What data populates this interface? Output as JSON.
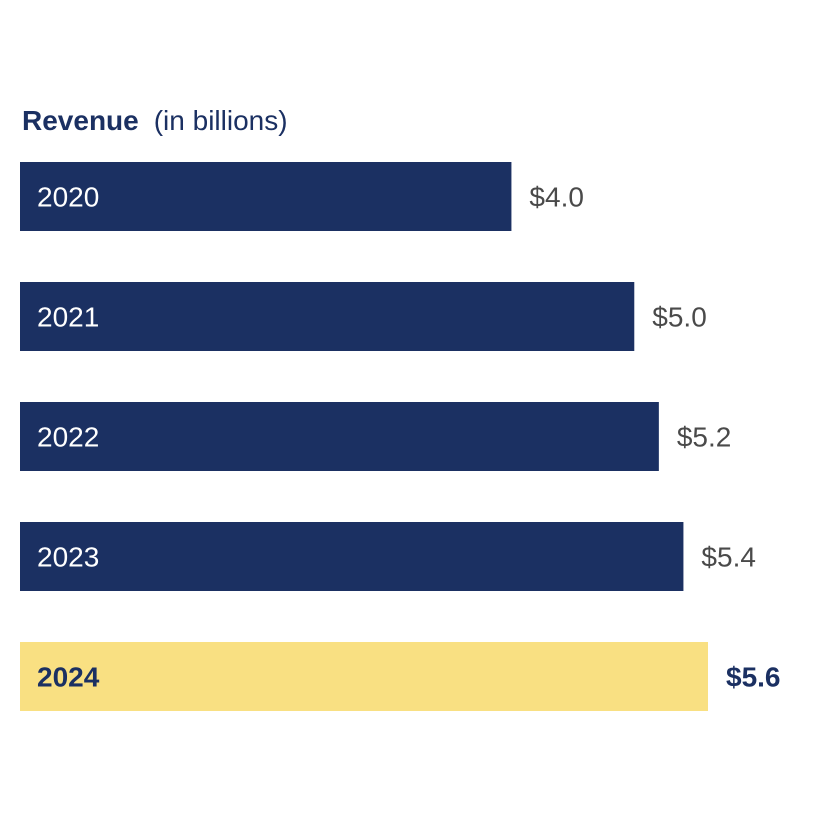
{
  "chart_data": {
    "type": "bar",
    "orientation": "horizontal",
    "title": "Revenue",
    "subtitle": "(in billions)",
    "categories": [
      "2020",
      "2021",
      "2022",
      "2023",
      "2024"
    ],
    "values": [
      4.0,
      5.0,
      5.2,
      5.4,
      5.6
    ],
    "value_labels": [
      "$4.0",
      "$5.0",
      "$5.2",
      "$5.4",
      "$5.6"
    ],
    "highlight_index": 4,
    "xlim": [
      0,
      5.6
    ],
    "grid": false,
    "legend": "none"
  },
  "colors": {
    "bar": "#1b3062",
    "highlight_bar": "#f9e082",
    "bar_text": "#ffffff",
    "highlight_text": "#1b3062",
    "value_text": "#4a4a4a",
    "title": "#1b3062"
  }
}
